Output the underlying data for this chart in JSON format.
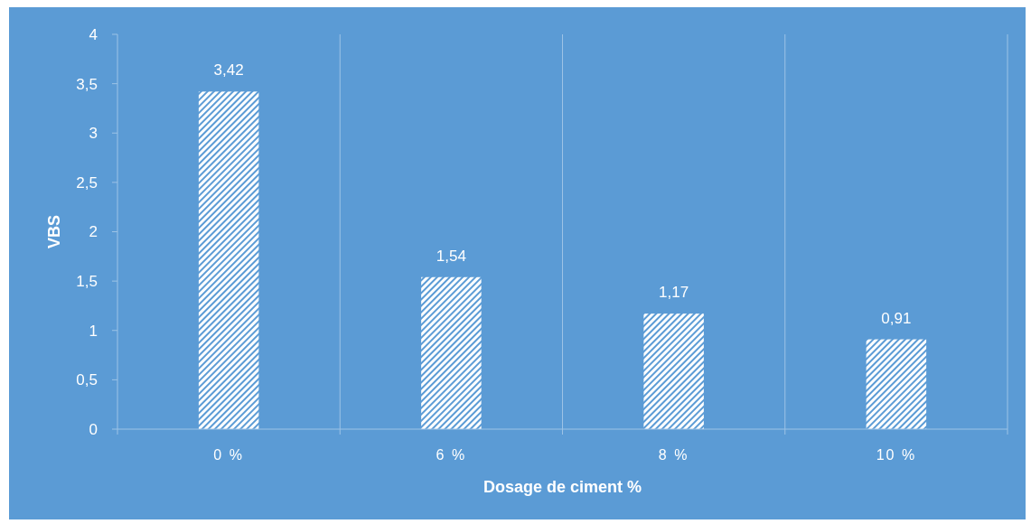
{
  "chart_data": {
    "type": "bar",
    "xlabel": "Dosage de ciment %",
    "ylabel": "VBS",
    "categories": [
      "0 %",
      "6 %",
      "8 %",
      "10 %"
    ],
    "values": [
      3.42,
      1.54,
      1.17,
      0.91
    ],
    "value_labels": [
      "3,42",
      "1,54",
      "1,17",
      "0,91"
    ],
    "color": "#ffffff",
    "ylim": [
      0,
      4
    ],
    "yticks": [
      0,
      {
        "value": 0.5,
        "label": "0,5"
      },
      1,
      {
        "value": 1.5,
        "label": "1,5"
      },
      2,
      {
        "value": 2.5,
        "label": "2,5"
      },
      3,
      {
        "value": 3.5,
        "label": "3,5"
      },
      4
    ],
    "grid": "x"
  }
}
